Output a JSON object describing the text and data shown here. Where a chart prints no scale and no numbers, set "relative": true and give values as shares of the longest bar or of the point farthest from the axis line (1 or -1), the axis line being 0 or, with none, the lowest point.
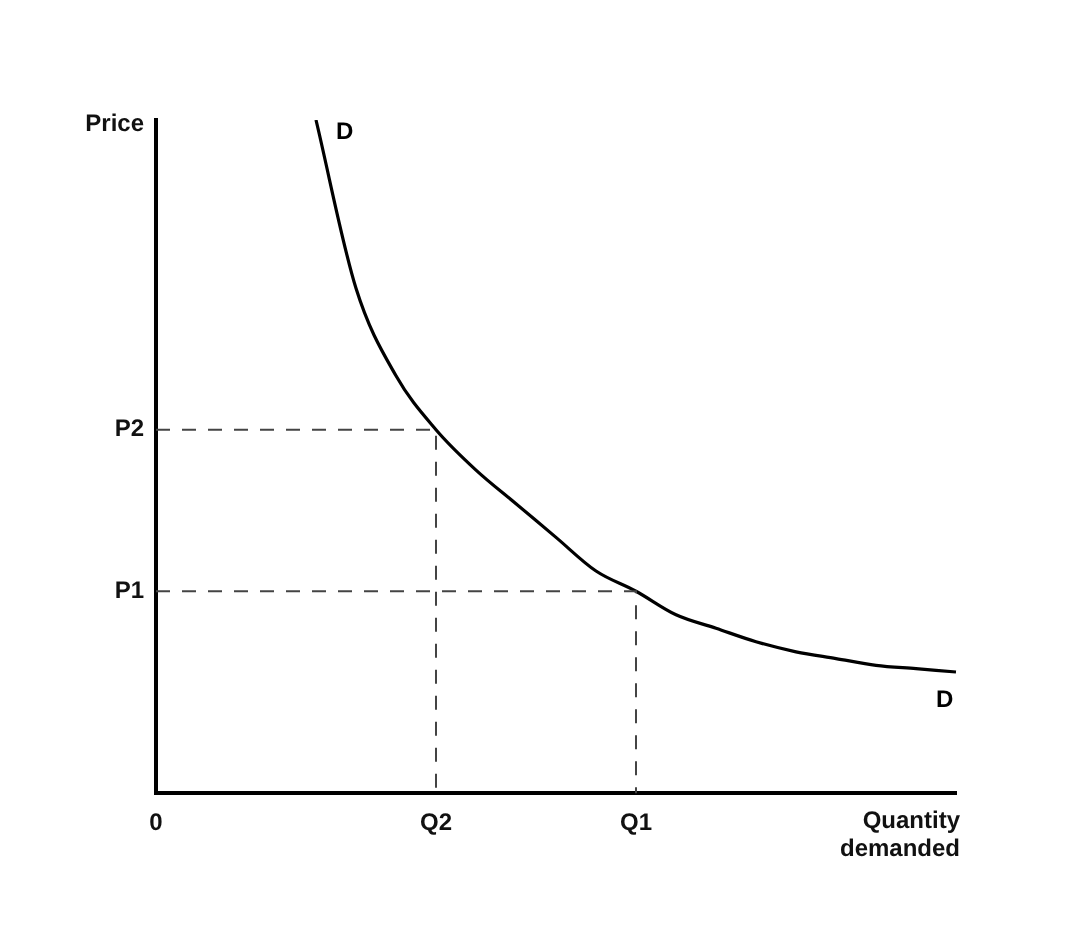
{
  "chart_data": {
    "type": "line",
    "relative": true,
    "xlabel": "Quantity\ndemanded",
    "ylabel": "Price",
    "categories": [
      "0",
      null,
      null,
      null,
      null,
      null,
      null,
      "Q2",
      null,
      null,
      null,
      null,
      "Q1",
      null,
      null,
      null,
      null,
      null,
      null,
      null,
      null
    ],
    "series": [
      {
        "name": "D",
        "color": "#000000",
        "values": [
          null,
          null,
          null,
          null,
          1,
          0.75,
          0.62,
          0.54,
          0.48,
          0.43,
          0.38,
          0.33,
          0.3,
          0.265,
          0.245,
          0.225,
          0.21,
          0.2,
          0.19,
          0.185,
          0.18
        ]
      }
    ],
    "annotations": [
      "P2",
      "P1"
    ],
    "grid": false,
    "legend": false,
    "marker": "none",
    "line_style": "solid"
  }
}
